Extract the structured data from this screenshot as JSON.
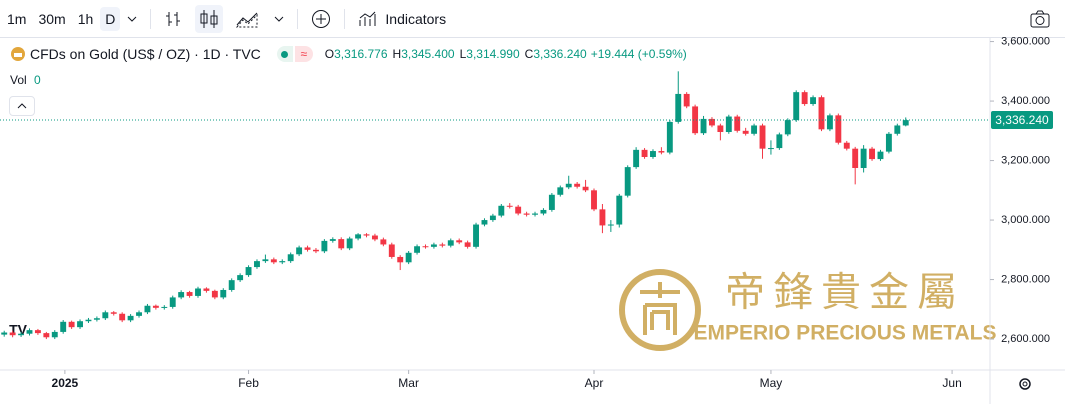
{
  "toolbar": {
    "intervals": [
      "1m",
      "30m",
      "1h",
      "D"
    ],
    "indicators": "Indicators"
  },
  "legend": {
    "symbol": "CFDs on Gold (US$ / OZ) · 1D · TVC",
    "ohlc": [
      [
        "O",
        "3,316.776"
      ],
      [
        "H",
        "3,345.400"
      ],
      [
        "L",
        "3,314.990"
      ],
      [
        "C",
        "3,336.240"
      ]
    ],
    "change": "+19.444 (+0.59%)",
    "volume_label": "Vol",
    "volume": "0"
  },
  "watermark": {
    "chinese": "帝鋒貴金屬",
    "english": "EMPERIO PRECIOUS METALS"
  },
  "chart_data": {
    "type": "candlestick",
    "up_color": "#089981",
    "down_color": "#f23645",
    "grid": false,
    "last_price": {
      "value": 3336.24,
      "label": "3,336.240"
    },
    "ylim": [
      2496,
      3612
    ],
    "yticks": [
      {
        "value": 2600,
        "label": "2,600.000"
      },
      {
        "value": 2800,
        "label": "2,800.000"
      },
      {
        "value": 3000,
        "label": "3,000.000"
      },
      {
        "value": 3200,
        "label": "3,200.000"
      },
      {
        "value": 3400,
        "label": "3,400.000"
      },
      {
        "value": 3600,
        "label": "3,600.000"
      }
    ],
    "xlim": [
      -0.5,
      117
    ],
    "xticks": [
      {
        "value": 7.2,
        "label": "2025"
      },
      {
        "value": 29,
        "label": "Feb"
      },
      {
        "value": 48,
        "label": "Mar"
      },
      {
        "value": 70,
        "label": "Apr"
      },
      {
        "value": 91,
        "label": "May"
      },
      {
        "value": 112.5,
        "label": "Jun"
      }
    ],
    "ohlc": [
      [
        2615,
        2628,
        2608,
        2622
      ],
      [
        2622,
        2628,
        2606,
        2613
      ],
      [
        2613,
        2624,
        2607,
        2618
      ],
      [
        2618,
        2636,
        2612,
        2630
      ],
      [
        2630,
        2634,
        2614,
        2620
      ],
      [
        2620,
        2624,
        2600,
        2606
      ],
      [
        2606,
        2630,
        2600,
        2624
      ],
      [
        2624,
        2664,
        2618,
        2658
      ],
      [
        2658,
        2662,
        2634,
        2640
      ],
      [
        2640,
        2666,
        2634,
        2660
      ],
      [
        2660,
        2671,
        2654,
        2665
      ],
      [
        2665,
        2676,
        2659,
        2670
      ],
      [
        2670,
        2696,
        2664,
        2690
      ],
      [
        2690,
        2694,
        2679,
        2685
      ],
      [
        2685,
        2690,
        2657,
        2663
      ],
      [
        2663,
        2684,
        2657,
        2678
      ],
      [
        2678,
        2696,
        2672,
        2690
      ],
      [
        2690,
        2718,
        2684,
        2712
      ],
      [
        2712,
        2716,
        2699,
        2705
      ],
      [
        2705,
        2714,
        2699,
        2708
      ],
      [
        2708,
        2746,
        2702,
        2740
      ],
      [
        2740,
        2764,
        2734,
        2758
      ],
      [
        2758,
        2762,
        2739,
        2745
      ],
      [
        2745,
        2776,
        2739,
        2770
      ],
      [
        2770,
        2774,
        2756,
        2762
      ],
      [
        2762,
        2766,
        2734,
        2740
      ],
      [
        2740,
        2771,
        2734,
        2765
      ],
      [
        2765,
        2804,
        2759,
        2798
      ],
      [
        2798,
        2821,
        2792,
        2815
      ],
      [
        2815,
        2848,
        2809,
        2842
      ],
      [
        2842,
        2868,
        2836,
        2862
      ],
      [
        2862,
        2884,
        2856,
        2868
      ],
      [
        2868,
        2874,
        2852,
        2858
      ],
      [
        2858,
        2868,
        2852,
        2862
      ],
      [
        2862,
        2891,
        2856,
        2885
      ],
      [
        2885,
        2914,
        2879,
        2908
      ],
      [
        2908,
        2914,
        2894,
        2900
      ],
      [
        2900,
        2906,
        2889,
        2895
      ],
      [
        2895,
        2936,
        2889,
        2930
      ],
      [
        2930,
        2942,
        2924,
        2936
      ],
      [
        2936,
        2942,
        2899,
        2905
      ],
      [
        2905,
        2944,
        2899,
        2938
      ],
      [
        2938,
        2956,
        2932,
        2952
      ],
      [
        2952,
        2956,
        2942,
        2948
      ],
      [
        2948,
        2954,
        2929,
        2935
      ],
      [
        2935,
        2941,
        2912,
        2918
      ],
      [
        2918,
        2924,
        2870,
        2876
      ],
      [
        2876,
        2882,
        2832,
        2858
      ],
      [
        2858,
        2896,
        2852,
        2890
      ],
      [
        2890,
        2918,
        2884,
        2912
      ],
      [
        2912,
        2918,
        2904,
        2910
      ],
      [
        2910,
        2924,
        2904,
        2918
      ],
      [
        2918,
        2924,
        2908,
        2914
      ],
      [
        2914,
        2938,
        2908,
        2932
      ],
      [
        2932,
        2938,
        2919,
        2925
      ],
      [
        2925,
        2931,
        2904,
        2910
      ],
      [
        2910,
        2991,
        2904,
        2985
      ],
      [
        2985,
        3006,
        2979,
        3000
      ],
      [
        3000,
        3021,
        2994,
        3015
      ],
      [
        3015,
        3054,
        3009,
        3048
      ],
      [
        3048,
        3057,
        3039,
        3045
      ],
      [
        3045,
        3051,
        3016,
        3022
      ],
      [
        3022,
        3028,
        3012,
        3018
      ],
      [
        3018,
        3028,
        3012,
        3022
      ],
      [
        3022,
        3040,
        3016,
        3034
      ],
      [
        3034,
        3091,
        3028,
        3085
      ],
      [
        3085,
        3116,
        3079,
        3110
      ],
      [
        3110,
        3149,
        3104,
        3122
      ],
      [
        3122,
        3128,
        3106,
        3112
      ],
      [
        3112,
        3135,
        3094,
        3100
      ],
      [
        3100,
        3106,
        3030,
        3036
      ],
      [
        3036,
        3054,
        2956,
        2982
      ],
      [
        2982,
        3000,
        2960,
        2985
      ],
      [
        2985,
        3088,
        2975,
        3082
      ],
      [
        3082,
        3184,
        3076,
        3178
      ],
      [
        3178,
        3245,
        3172,
        3236
      ],
      [
        3236,
        3242,
        3206,
        3212
      ],
      [
        3212,
        3238,
        3206,
        3232
      ],
      [
        3232,
        3245,
        3221,
        3227
      ],
      [
        3227,
        3336,
        3221,
        3330
      ],
      [
        3330,
        3500,
        3324,
        3424
      ],
      [
        3424,
        3430,
        3376,
        3382
      ],
      [
        3382,
        3388,
        3286,
        3292
      ],
      [
        3292,
        3350,
        3286,
        3340
      ],
      [
        3340,
        3346,
        3312,
        3318
      ],
      [
        3318,
        3324,
        3268,
        3296
      ],
      [
        3296,
        3354,
        3290,
        3348
      ],
      [
        3348,
        3354,
        3294,
        3300
      ],
      [
        3300,
        3310,
        3284,
        3290
      ],
      [
        3290,
        3324,
        3284,
        3318
      ],
      [
        3318,
        3324,
        3206,
        3240
      ],
      [
        3240,
        3268,
        3220,
        3242
      ],
      [
        3242,
        3294,
        3236,
        3288
      ],
      [
        3288,
        3342,
        3282,
        3336
      ],
      [
        3336,
        3436,
        3330,
        3430
      ],
      [
        3430,
        3436,
        3384,
        3390
      ],
      [
        3390,
        3419,
        3384,
        3413
      ],
      [
        3413,
        3419,
        3299,
        3305
      ],
      [
        3305,
        3358,
        3299,
        3352
      ],
      [
        3352,
        3358,
        3254,
        3260
      ],
      [
        3260,
        3266,
        3234,
        3240
      ],
      [
        3240,
        3246,
        3120,
        3175
      ],
      [
        3175,
        3252,
        3160,
        3240
      ],
      [
        3240,
        3246,
        3199,
        3205
      ],
      [
        3205,
        3236,
        3199,
        3230
      ],
      [
        3230,
        3296,
        3224,
        3290
      ],
      [
        3290,
        3324,
        3284,
        3318
      ],
      [
        3318,
        3345,
        3315,
        3336
      ]
    ]
  }
}
